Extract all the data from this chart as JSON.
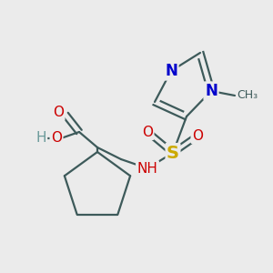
{
  "background_color": "#ebebeb",
  "bond_color": "#3d5a5a",
  "fig_width": 3.0,
  "fig_height": 3.0,
  "dpi": 100,
  "colors": {
    "N": "#0000cc",
    "S": "#ccaa00",
    "O": "#cc0000",
    "H": "#6a9a9a",
    "C": "#3d5a5a"
  }
}
